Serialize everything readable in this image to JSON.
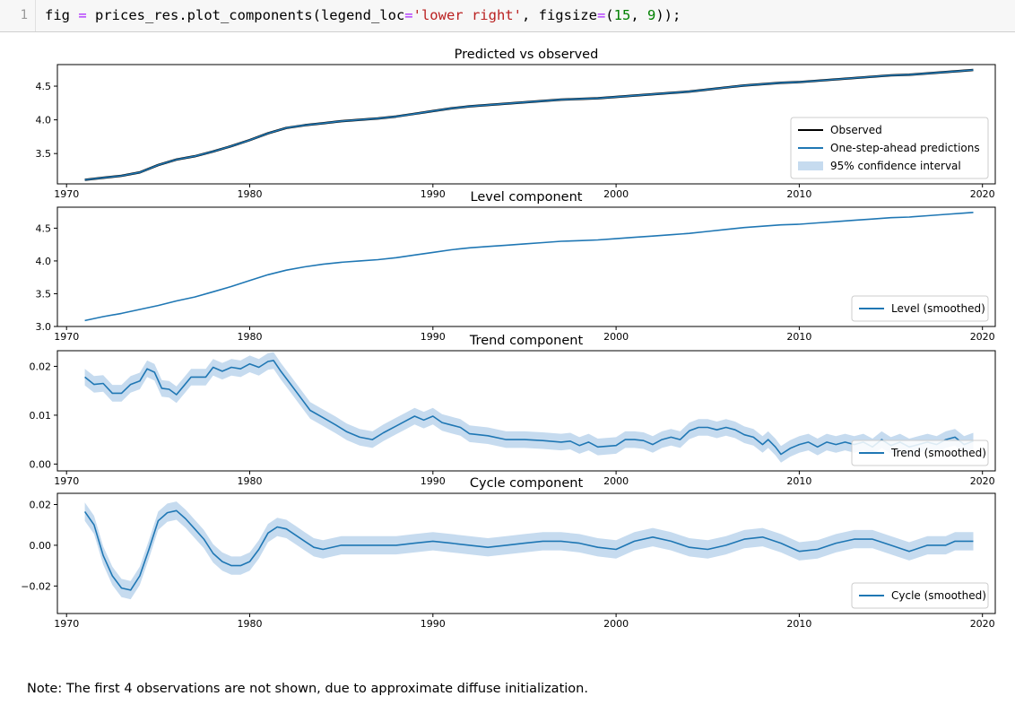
{
  "cell": {
    "line_number": "1",
    "code_parts": [
      {
        "t": "fig ",
        "c": "plain"
      },
      {
        "t": "=",
        "c": "op"
      },
      {
        "t": " prices_res.plot_components(legend_loc",
        "c": "plain"
      },
      {
        "t": "=",
        "c": "op"
      },
      {
        "t": "'lower right'",
        "c": "str"
      },
      {
        "t": ", figsize",
        "c": "plain"
      },
      {
        "t": "=",
        "c": "op"
      },
      {
        "t": "(",
        "c": "plain"
      },
      {
        "t": "15",
        "c": "num"
      },
      {
        "t": ", ",
        "c": "plain"
      },
      {
        "t": "9",
        "c": "num"
      },
      {
        "t": "));",
        "c": "plain"
      }
    ]
  },
  "note": "Note: The first 4 observations are not shown, due to approximate diffuse initialization.",
  "colors": {
    "observed": "#000000",
    "line": "#1f77b4",
    "band": "#c6dbef"
  },
  "chart_data": [
    {
      "type": "line",
      "title": "Predicted vs observed",
      "x_ticks": [
        1970,
        1980,
        1990,
        2000,
        2010,
        2020
      ],
      "y_ticks": [
        "3.5",
        "4.0",
        "4.5"
      ],
      "y_tick_values": [
        3.5,
        4.0,
        4.5
      ],
      "xlim": [
        1969.5,
        2020.7
      ],
      "ylim": [
        3.05,
        4.82
      ],
      "legend": {
        "placement": "lower right",
        "entries": [
          "Observed",
          "One-step-ahead predictions",
          "95% confidence interval"
        ]
      },
      "series": [
        {
          "name": "Observed",
          "x": [
            1971,
            1972,
            1973,
            1974,
            1975,
            1976,
            1977,
            1978,
            1979,
            1980,
            1981,
            1982,
            1983,
            1984,
            1985,
            1986,
            1987,
            1988,
            1989,
            1990,
            1991,
            1992,
            1993,
            1994,
            1995,
            1996,
            1997,
            1998,
            1999,
            2000,
            2001,
            2002,
            2003,
            2004,
            2005,
            2006,
            2007,
            2008,
            2009,
            2010,
            2011,
            2012,
            2013,
            2014,
            2015,
            2016,
            2017,
            2018,
            2019,
            2019.5
          ],
          "values": [
            3.11,
            3.14,
            3.17,
            3.22,
            3.33,
            3.41,
            3.46,
            3.53,
            3.61,
            3.7,
            3.8,
            3.88,
            3.92,
            3.95,
            3.98,
            4.0,
            4.02,
            4.05,
            4.09,
            4.13,
            4.17,
            4.2,
            4.22,
            4.24,
            4.26,
            4.28,
            4.3,
            4.31,
            4.32,
            4.34,
            4.36,
            4.38,
            4.4,
            4.42,
            4.45,
            4.48,
            4.51,
            4.53,
            4.55,
            4.56,
            4.58,
            4.6,
            4.62,
            4.64,
            4.66,
            4.67,
            4.69,
            4.71,
            4.73,
            4.74
          ]
        },
        {
          "name": "One-step-ahead predictions",
          "x": [
            1971,
            1972,
            1973,
            1974,
            1975,
            1976,
            1977,
            1978,
            1979,
            1980,
            1981,
            1982,
            1983,
            1984,
            1985,
            1986,
            1987,
            1988,
            1989,
            1990,
            1991,
            1992,
            1993,
            1994,
            1995,
            1996,
            1997,
            1998,
            1999,
            2000,
            2001,
            2002,
            2003,
            2004,
            2005,
            2006,
            2007,
            2008,
            2009,
            2010,
            2011,
            2012,
            2013,
            2014,
            2015,
            2016,
            2017,
            2018,
            2019,
            2019.5
          ],
          "values": [
            3.11,
            3.14,
            3.17,
            3.22,
            3.33,
            3.41,
            3.46,
            3.53,
            3.61,
            3.7,
            3.8,
            3.88,
            3.92,
            3.95,
            3.98,
            4.0,
            4.02,
            4.05,
            4.09,
            4.13,
            4.17,
            4.2,
            4.22,
            4.24,
            4.26,
            4.28,
            4.3,
            4.31,
            4.32,
            4.34,
            4.36,
            4.38,
            4.4,
            4.42,
            4.45,
            4.48,
            4.51,
            4.53,
            4.55,
            4.56,
            4.58,
            4.6,
            4.62,
            4.64,
            4.66,
            4.67,
            4.69,
            4.71,
            4.73,
            4.74
          ]
        }
      ]
    },
    {
      "type": "line",
      "title": "Level component",
      "x_ticks": [
        1970,
        1980,
        1990,
        2000,
        2010,
        2020
      ],
      "y_ticks": [
        "3.0",
        "3.5",
        "4.0",
        "4.5"
      ],
      "y_tick_values": [
        3.0,
        3.5,
        4.0,
        4.5
      ],
      "xlim": [
        1969.5,
        2020.7
      ],
      "ylim": [
        3.0,
        4.82
      ],
      "legend": {
        "placement": "lower right",
        "entries": [
          "Level (smoothed)"
        ]
      },
      "series": [
        {
          "name": "Level (smoothed)",
          "x": [
            1971,
            1972,
            1973,
            1974,
            1975,
            1976,
            1977,
            1978,
            1979,
            1980,
            1981,
            1982,
            1983,
            1984,
            1985,
            1986,
            1987,
            1988,
            1989,
            1990,
            1991,
            1992,
            1993,
            1994,
            1995,
            1996,
            1997,
            1998,
            1999,
            2000,
            2001,
            2002,
            2003,
            2004,
            2005,
            2006,
            2007,
            2008,
            2009,
            2010,
            2011,
            2012,
            2013,
            2014,
            2015,
            2016,
            2017,
            2018,
            2019,
            2019.5
          ],
          "values": [
            3.09,
            3.15,
            3.2,
            3.26,
            3.32,
            3.39,
            3.45,
            3.53,
            3.61,
            3.7,
            3.79,
            3.86,
            3.91,
            3.95,
            3.98,
            4.0,
            4.02,
            4.05,
            4.09,
            4.13,
            4.17,
            4.2,
            4.22,
            4.24,
            4.26,
            4.28,
            4.3,
            4.31,
            4.32,
            4.34,
            4.36,
            4.38,
            4.4,
            4.42,
            4.45,
            4.48,
            4.51,
            4.53,
            4.55,
            4.56,
            4.58,
            4.6,
            4.62,
            4.64,
            4.66,
            4.67,
            4.69,
            4.71,
            4.73,
            4.74
          ]
        }
      ]
    },
    {
      "type": "area",
      "title": "Trend component",
      "x_ticks": [
        1970,
        1980,
        1990,
        2000,
        2010,
        2020
      ],
      "y_ticks": [
        "0.00",
        "0.01",
        "0.02"
      ],
      "y_tick_values": [
        0.0,
        0.01,
        0.02
      ],
      "xlim": [
        1969.5,
        2020.7
      ],
      "ylim": [
        -0.0014,
        0.0232
      ],
      "legend": {
        "placement": "lower right",
        "entries": [
          "Trend (smoothed)"
        ]
      },
      "band_halfwidth": 0.0017,
      "series": [
        {
          "name": "Trend (smoothed)",
          "x": [
            1971,
            1971.5,
            1972,
            1972.5,
            1973,
            1973.5,
            1974,
            1974.4,
            1974.8,
            1975.2,
            1975.6,
            1976,
            1976.4,
            1976.8,
            1977.2,
            1977.6,
            1978,
            1978.5,
            1979,
            1979.5,
            1980,
            1980.5,
            1981,
            1981.3,
            1981.7,
            1982.2,
            1982.8,
            1983.3,
            1984,
            1984.7,
            1985.3,
            1986,
            1986.7,
            1987.3,
            1988,
            1988.5,
            1989,
            1989.5,
            1990,
            1990.5,
            1991,
            1991.5,
            1992,
            1993,
            1994,
            1995,
            1996,
            1997,
            1997.5,
            1998,
            1998.5,
            1999,
            2000,
            2000.5,
            2001,
            2001.5,
            2002,
            2002.5,
            2003,
            2003.5,
            2004,
            2004.5,
            2005,
            2005.5,
            2006,
            2006.5,
            2007,
            2007.5,
            2008,
            2008.3,
            2008.7,
            2009,
            2009.5,
            2010,
            2010.5,
            2011,
            2011.5,
            2012,
            2012.5,
            2013,
            2013.5,
            2014,
            2014.5,
            2015,
            2015.5,
            2016,
            2016.5,
            2017,
            2017.5,
            2018,
            2018.5,
            2019,
            2019.5
          ],
          "values": [
            0.0178,
            0.0163,
            0.0165,
            0.0145,
            0.0145,
            0.0163,
            0.017,
            0.0195,
            0.0188,
            0.0155,
            0.0153,
            0.0142,
            0.016,
            0.0178,
            0.0178,
            0.0178,
            0.0198,
            0.019,
            0.0198,
            0.0195,
            0.0205,
            0.0198,
            0.021,
            0.0212,
            0.019,
            0.0165,
            0.0135,
            0.011,
            0.0095,
            0.008,
            0.0066,
            0.0055,
            0.005,
            0.0064,
            0.0078,
            0.0088,
            0.0098,
            0.009,
            0.0098,
            0.0085,
            0.008,
            0.0075,
            0.0062,
            0.0058,
            0.005,
            0.005,
            0.0048,
            0.0045,
            0.0047,
            0.0038,
            0.0045,
            0.0035,
            0.0038,
            0.005,
            0.005,
            0.0048,
            0.004,
            0.005,
            0.0055,
            0.005,
            0.0068,
            0.0075,
            0.0075,
            0.007,
            0.0075,
            0.007,
            0.006,
            0.0055,
            0.004,
            0.005,
            0.0035,
            0.002,
            0.0032,
            0.004,
            0.0045,
            0.0035,
            0.0045,
            0.004,
            0.0045,
            0.004,
            0.0045,
            0.0035,
            0.005,
            0.0038,
            0.0045,
            0.0035,
            0.004,
            0.0045,
            0.004,
            0.005,
            0.0055,
            0.004,
            0.0047
          ]
        }
      ]
    },
    {
      "type": "area",
      "title": "Cycle component",
      "x_ticks": [
        1970,
        1980,
        1990,
        2000,
        2010,
        2020
      ],
      "y_ticks": [
        "−0.02",
        "0.00",
        "0.02"
      ],
      "y_tick_values": [
        -0.02,
        0.0,
        0.02
      ],
      "xlim": [
        1969.5,
        2020.7
      ],
      "ylim": [
        -0.0335,
        0.0255
      ],
      "legend": {
        "placement": "lower right",
        "entries": [
          "Cycle (smoothed)"
        ]
      },
      "band_halfwidth": 0.0045,
      "series": [
        {
          "name": "Cycle (smoothed)",
          "x": [
            1971,
            1971.5,
            1972,
            1972.5,
            1973,
            1973.5,
            1974,
            1974.5,
            1975,
            1975.5,
            1976,
            1976.5,
            1977,
            1977.5,
            1978,
            1978.5,
            1979,
            1979.5,
            1980,
            1980.5,
            1981,
            1981.5,
            1982,
            1982.5,
            1983,
            1983.5,
            1984,
            1985,
            1986,
            1987,
            1988,
            1989,
            1990,
            1991,
            1992,
            1993,
            1994,
            1995,
            1996,
            1997,
            1998,
            1999,
            2000,
            2001,
            2002,
            2003,
            2004,
            2005,
            2006,
            2007,
            2008,
            2009,
            2010,
            2011,
            2012,
            2013,
            2014,
            2015,
            2016,
            2017,
            2018,
            2018.5,
            2019,
            2019.5
          ],
          "values": [
            0.0165,
            0.01,
            -0.005,
            -0.015,
            -0.021,
            -0.022,
            -0.015,
            -0.002,
            0.012,
            0.016,
            0.017,
            0.013,
            0.008,
            0.003,
            -0.004,
            -0.008,
            -0.01,
            -0.01,
            -0.008,
            -0.002,
            0.006,
            0.009,
            0.008,
            0.005,
            0.002,
            -0.001,
            -0.002,
            0.0,
            0.0,
            0.0,
            0.0,
            0.001,
            0.002,
            0.001,
            0.0,
            -0.001,
            0.0,
            0.001,
            0.002,
            0.002,
            0.001,
            -0.001,
            -0.002,
            0.002,
            0.004,
            0.002,
            -0.001,
            -0.002,
            0.0,
            0.003,
            0.004,
            0.001,
            -0.003,
            -0.002,
            0.001,
            0.003,
            0.003,
            0.0,
            -0.003,
            0.0,
            0.0,
            0.002,
            0.002,
            0.002
          ]
        }
      ]
    }
  ]
}
